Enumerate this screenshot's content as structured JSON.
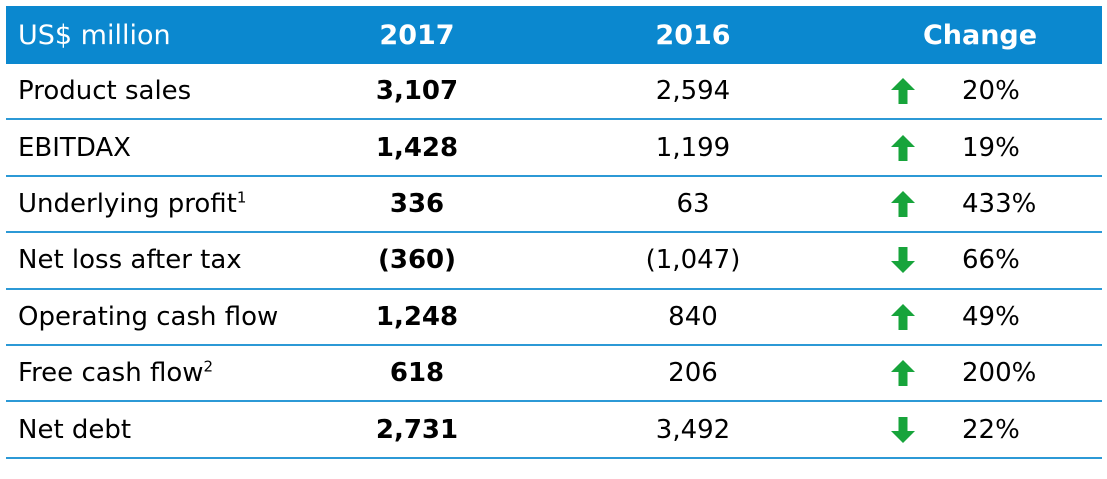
{
  "chart_data": {
    "type": "table",
    "columns": [
      "US$ million",
      "2017",
      "2016",
      "Change"
    ],
    "rows": [
      {
        "label": "Product sales",
        "sup": "",
        "y2017": "3,107",
        "y2016": "2,594",
        "direction": "up",
        "change": "20%"
      },
      {
        "label": "EBITDAX",
        "sup": "",
        "y2017": "1,428",
        "y2016": "1,199",
        "direction": "up",
        "change": "19%"
      },
      {
        "label": "Underlying profit",
        "sup": "1",
        "y2017": "336",
        "y2016": "63",
        "direction": "up",
        "change": "433%"
      },
      {
        "label": "Net loss after tax",
        "sup": "",
        "y2017": "(360)",
        "y2016": "(1,047)",
        "direction": "down",
        "change": "66%"
      },
      {
        "label": "Operating cash flow",
        "sup": "",
        "y2017": "1,248",
        "y2016": "840",
        "direction": "up",
        "change": "49%"
      },
      {
        "label": "Free cash flow",
        "sup": "2",
        "y2017": "618",
        "y2016": "206",
        "direction": "up",
        "change": "200%"
      },
      {
        "label": "Net debt",
        "sup": "",
        "y2017": "2,731",
        "y2016": "3,492",
        "direction": "down",
        "change": "22%"
      }
    ]
  },
  "colors": {
    "header_bg": "#0b88cf",
    "row_border": "#2c99d6",
    "arrow": "#17a43b"
  },
  "icons": {
    "up": "arrow-up-icon",
    "down": "arrow-down-icon"
  }
}
